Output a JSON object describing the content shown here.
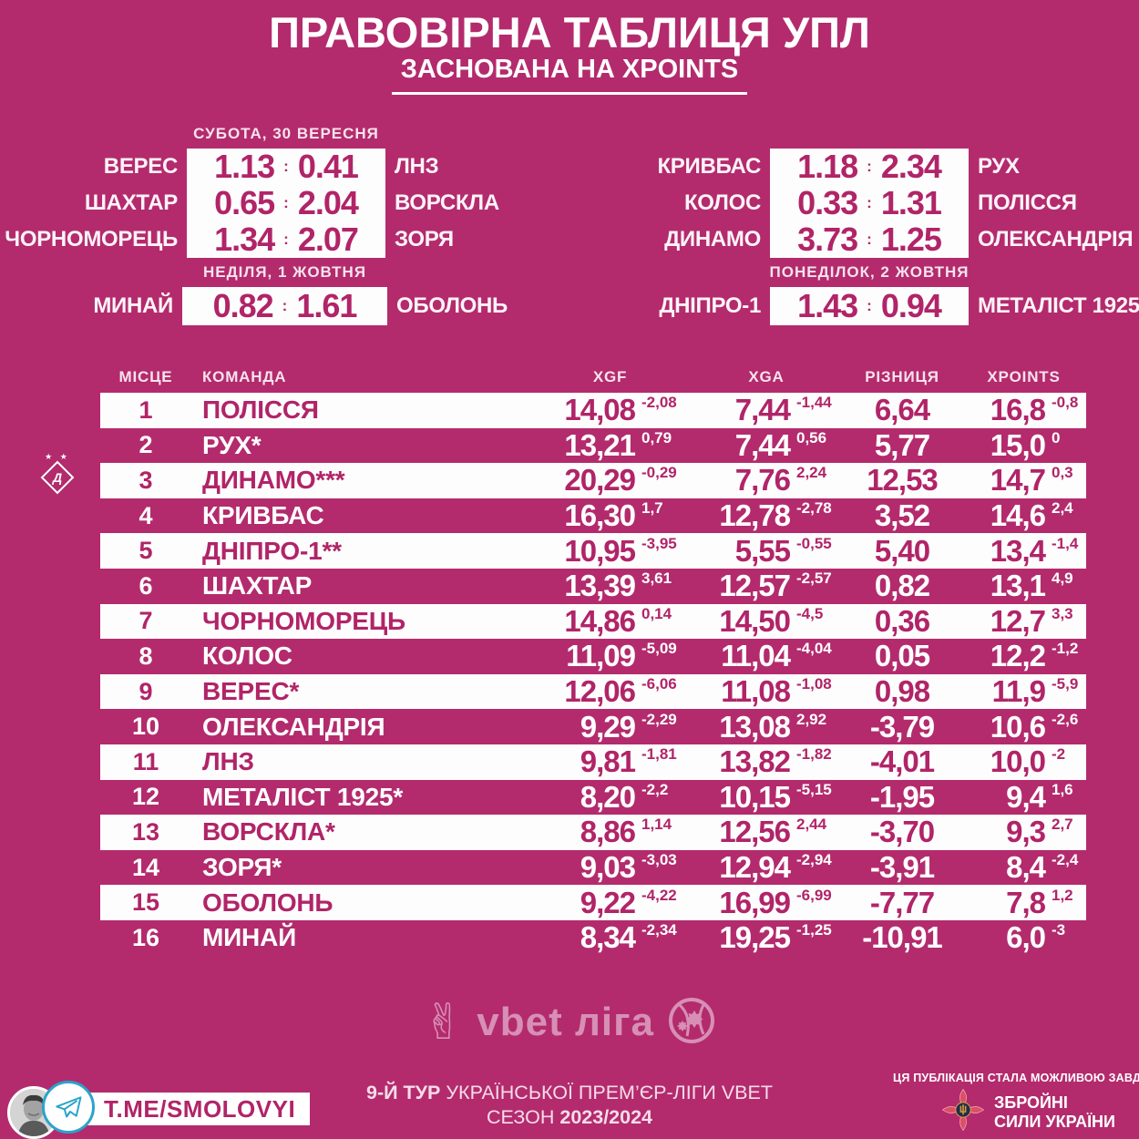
{
  "colors": {
    "background": "#b32b6d",
    "accent_magenta": "#b12468",
    "row_white": "#fdfdfd",
    "telegram_blue": "#2ba3cc",
    "emblem_red": "#dc4f66",
    "emblem_gold": "#d9a43a",
    "vbet_pink": "#d78fb5"
  },
  "header": {
    "title": "ПРАВОВІРНА ТАБЛИЦЯ УПЛ",
    "subtitle": "ЗАСНОВАНА НА XPOINTS"
  },
  "fixtures": {
    "score_separator": ":",
    "groups": [
      {
        "date": "СУБОТА, 30 ВЕРЕСНЯ",
        "matches": [
          {
            "home": "ВЕРЕС",
            "home_xg": "1.13",
            "away_xg": "0.41",
            "away": "ЛНЗ"
          },
          {
            "home": "ШАХТАР",
            "home_xg": "0.65",
            "away_xg": "2.04",
            "away": "ВОРСКЛА"
          },
          {
            "home": "ЧОРНОМОРЕЦЬ",
            "home_xg": "1.34",
            "away_xg": "2.07",
            "away": "ЗОРЯ"
          }
        ]
      },
      {
        "date": "",
        "matches": [
          {
            "home": "КРИВБАС",
            "home_xg": "1.18",
            "away_xg": "2.34",
            "away": "РУХ"
          },
          {
            "home": "КОЛОС",
            "home_xg": "0.33",
            "away_xg": "1.31",
            "away": "ПОЛІССЯ"
          },
          {
            "home": "ДИНАМО",
            "home_xg": "3.73",
            "away_xg": "1.25",
            "away": "ОЛЕКСАНДРІЯ"
          }
        ]
      },
      {
        "date": "НЕДІЛЯ, 1 ЖОВТНЯ",
        "matches": [
          {
            "home": "МИНАЙ",
            "home_xg": "0.82",
            "away_xg": "1.61",
            "away": "ОБОЛОНЬ"
          }
        ]
      },
      {
        "date": "ПОНЕДІЛОК, 2 ЖОВТНЯ",
        "matches": [
          {
            "home": "ДНІПРО-1",
            "home_xg": "1.43",
            "away_xg": "0.94",
            "away": "МЕТАЛІСТ 1925"
          }
        ]
      }
    ]
  },
  "chart_data": {
    "type": "table",
    "title": "ПРАВОВІРНА ТАБЛИЦЯ УПЛ — ЗАСНОВАНА НА XPOINTS",
    "columns": [
      "МІСЦЕ",
      "КОМАНДА",
      "XGF",
      "XGA",
      "РІЗНИЦЯ",
      "XPOINTS"
    ],
    "note": "each row: place, team, xgf, xgf_delta, xga, xga_delta, difference, xpoints, xpoints_delta",
    "rows": [
      {
        "place": "1",
        "team": "ПОЛІССЯ",
        "xgf": "14,08",
        "xgf_d": "-2,08",
        "xga": "7,44",
        "xga_d": "-1,44",
        "diff": "6,64",
        "xp": "16,8",
        "xp_d": "-0,8"
      },
      {
        "place": "2",
        "team": "РУХ*",
        "xgf": "13,21",
        "xgf_d": "0,79",
        "xga": "7,44",
        "xga_d": "0,56",
        "diff": "5,77",
        "xp": "15,0",
        "xp_d": "0"
      },
      {
        "place": "3",
        "team": "ДИНАМО***",
        "xgf": "20,29",
        "xgf_d": "-0,29",
        "xga": "7,76",
        "xga_d": "2,24",
        "diff": "12,53",
        "xp": "14,7",
        "xp_d": "0,3"
      },
      {
        "place": "4",
        "team": "КРИВБАС",
        "xgf": "16,30",
        "xgf_d": "1,7",
        "xga": "12,78",
        "xga_d": "-2,78",
        "diff": "3,52",
        "xp": "14,6",
        "xp_d": "2,4"
      },
      {
        "place": "5",
        "team": "ДНІПРО-1**",
        "xgf": "10,95",
        "xgf_d": "-3,95",
        "xga": "5,55",
        "xga_d": "-0,55",
        "diff": "5,40",
        "xp": "13,4",
        "xp_d": "-1,4"
      },
      {
        "place": "6",
        "team": "ШАХТАР",
        "xgf": "13,39",
        "xgf_d": "3,61",
        "xga": "12,57",
        "xga_d": "-2,57",
        "diff": "0,82",
        "xp": "13,1",
        "xp_d": "4,9"
      },
      {
        "place": "7",
        "team": "ЧОРНОМОРЕЦЬ",
        "xgf": "14,86",
        "xgf_d": "0,14",
        "xga": "14,50",
        "xga_d": "-4,5",
        "diff": "0,36",
        "xp": "12,7",
        "xp_d": "3,3"
      },
      {
        "place": "8",
        "team": "КОЛОС",
        "xgf": "11,09",
        "xgf_d": "-5,09",
        "xga": "11,04",
        "xga_d": "-4,04",
        "diff": "0,05",
        "xp": "12,2",
        "xp_d": "-1,2"
      },
      {
        "place": "9",
        "team": "ВЕРЕС*",
        "xgf": "12,06",
        "xgf_d": "-6,06",
        "xga": "11,08",
        "xga_d": "-1,08",
        "diff": "0,98",
        "xp": "11,9",
        "xp_d": "-5,9"
      },
      {
        "place": "10",
        "team": "ОЛЕКСАНДРІЯ",
        "xgf": "9,29",
        "xgf_d": "-2,29",
        "xga": "13,08",
        "xga_d": "2,92",
        "diff": "-3,79",
        "xp": "10,6",
        "xp_d": "-2,6"
      },
      {
        "place": "11",
        "team": "ЛНЗ",
        "xgf": "9,81",
        "xgf_d": "-1,81",
        "xga": "13,82",
        "xga_d": "-1,82",
        "diff": "-4,01",
        "xp": "10,0",
        "xp_d": "-2"
      },
      {
        "place": "12",
        "team": "МЕТАЛІСТ 1925*",
        "xgf": "8,20",
        "xgf_d": "-2,2",
        "xga": "10,15",
        "xga_d": "-5,15",
        "diff": "-1,95",
        "xp": "9,4",
        "xp_d": "1,6"
      },
      {
        "place": "13",
        "team": "ВОРСКЛА*",
        "xgf": "8,86",
        "xgf_d": "1,14",
        "xga": "12,56",
        "xga_d": "2,44",
        "diff": "-3,70",
        "xp": "9,3",
        "xp_d": "2,7"
      },
      {
        "place": "14",
        "team": "ЗОРЯ*",
        "xgf": "9,03",
        "xgf_d": "-3,03",
        "xga": "12,94",
        "xga_d": "-2,94",
        "diff": "-3,91",
        "xp": "8,4",
        "xp_d": "-2,4"
      },
      {
        "place": "15",
        "team": "ОБОЛОНЬ",
        "xgf": "9,22",
        "xgf_d": "-4,22",
        "xga": "16,99",
        "xga_d": "-6,99",
        "diff": "-7,77",
        "xp": "7,8",
        "xp_d": "1,2"
      },
      {
        "place": "16",
        "team": "МИНАЙ",
        "xgf": "8,34",
        "xgf_d": "-2,34",
        "xga": "19,25",
        "xga_d": "-1,25",
        "diff": "-10,91",
        "xp": "6,0",
        "xp_d": "-3"
      }
    ]
  },
  "badges": {
    "dynamo": {
      "stars": "★ ★",
      "letter": "Д"
    }
  },
  "branding": {
    "victory_hand_glyph": "✌",
    "vbet_text": "vbet ліга"
  },
  "footer": {
    "telegram_label": "T.ME/SMOLOVYI",
    "center": {
      "line1_bold": "9-Й ТУР",
      "line1_rest": " УКРАЇНСЬКОЇ ПРЕМ’ЄР-ЛІГИ VBET",
      "line2_label": "СЕЗОН ",
      "line2_bold": "2023/2024"
    },
    "thanks_line": "ЦЯ ПУБЛІКАЦІЯ СТАЛА МОЖЛИВОЮ ЗАВДЯКИ:",
    "army_line1": "ЗБРОЙНІ",
    "army_line2": "СИЛИ УКРАЇНИ"
  }
}
